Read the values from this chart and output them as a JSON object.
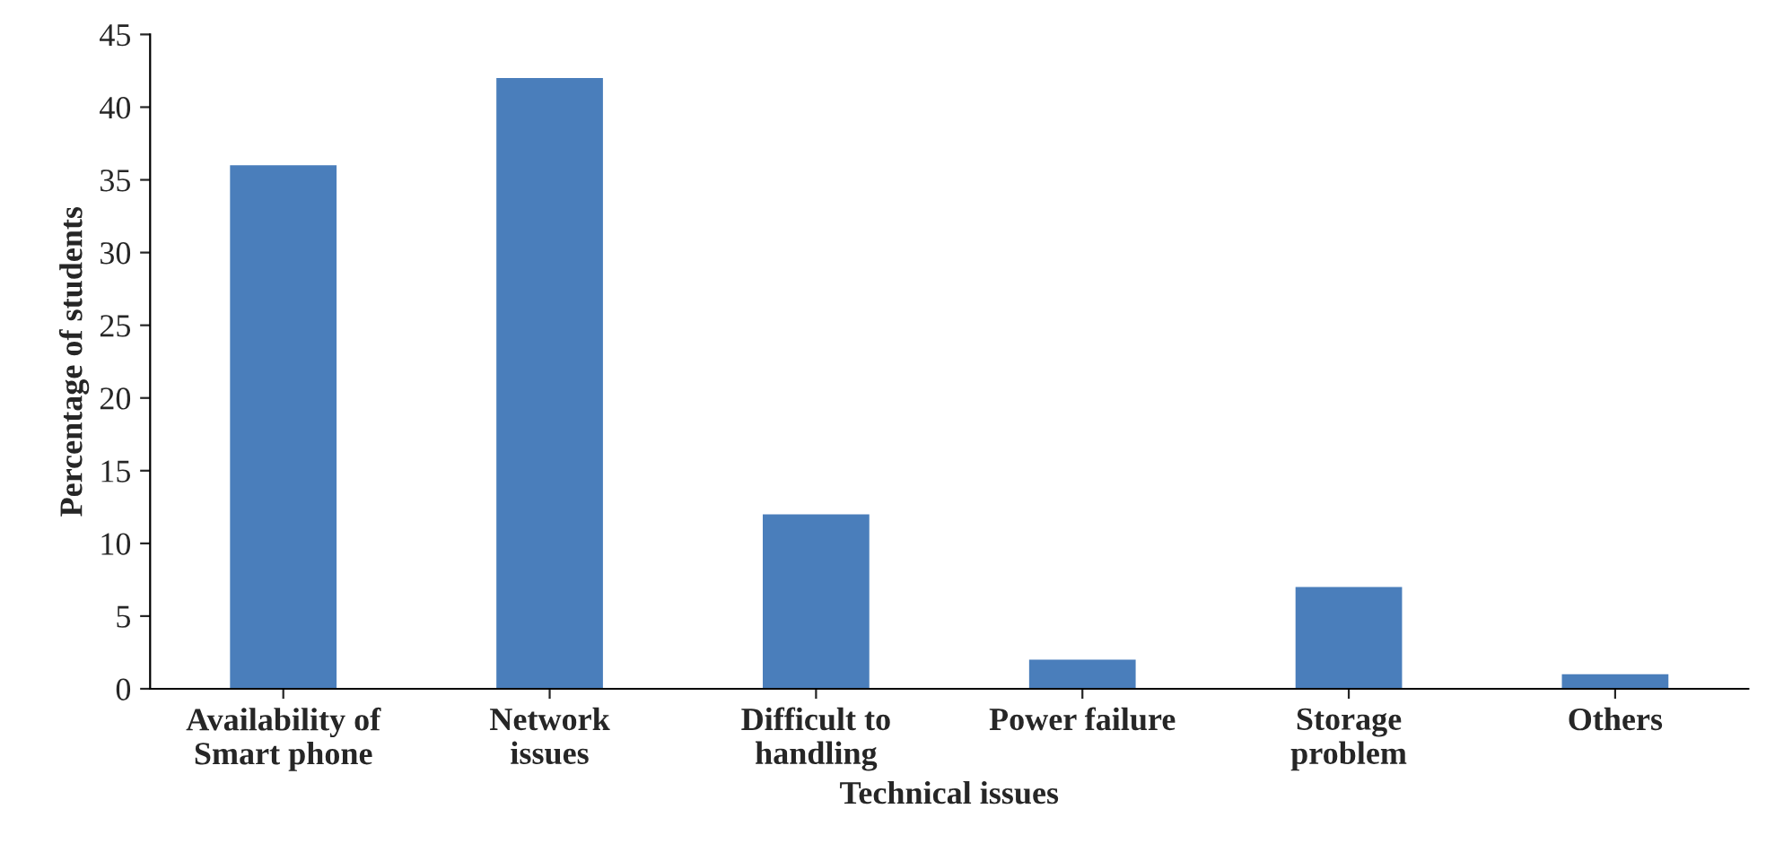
{
  "chart_data": {
    "type": "bar",
    "xlabel": "Technical issues",
    "ylabel": "Percentage of students",
    "categories": [
      "Availability of\nSmart phone",
      "Network\nissues",
      "Difficult to\nhandling",
      "Power failure",
      "Storage\nproblem",
      "Others"
    ],
    "values": [
      36,
      42,
      12,
      2,
      7,
      1
    ],
    "color": "#4a7ebb",
    "ylim": [
      0,
      45
    ],
    "yticks": [
      0,
      5,
      10,
      15,
      20,
      25,
      30,
      35,
      40,
      45
    ],
    "grid": false
  }
}
